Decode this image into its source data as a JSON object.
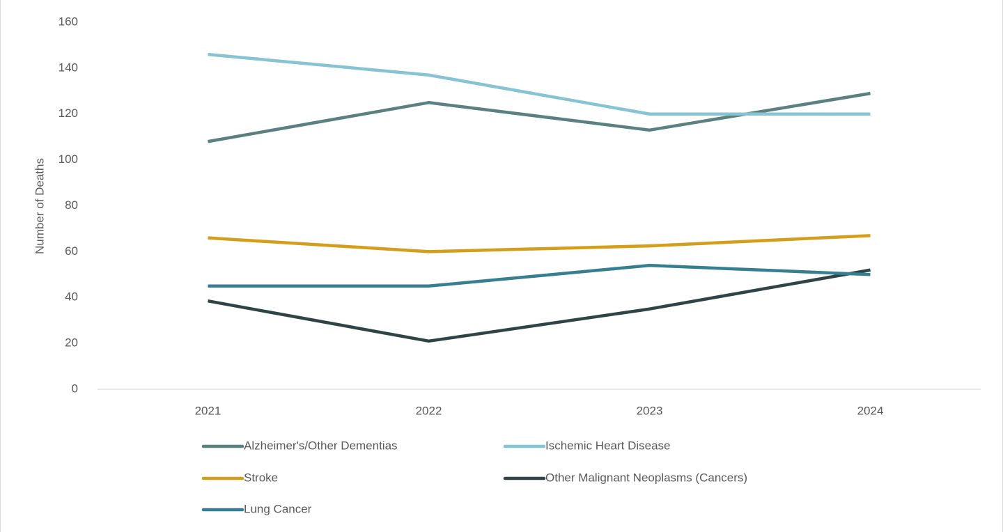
{
  "chart_data": {
    "type": "line",
    "y_label": "Number of Deaths",
    "categories": [
      "2021",
      "2022",
      "2023",
      "2024"
    ],
    "series": [
      {
        "name": "Alzheimer's/Other Dementias",
        "color": "#5a8081",
        "values": [
          108,
          125,
          113,
          129
        ]
      },
      {
        "name": "Ischemic Heart Disease",
        "color": "#86c4d3",
        "values": [
          146,
          137,
          120,
          120
        ]
      },
      {
        "name": "Stroke",
        "color": "#d49e1b",
        "values": [
          66,
          60,
          62.5,
          67
        ]
      },
      {
        "name": "Other Malignant Neoplasms (Cancers)",
        "color": "#2f4446",
        "values": [
          38.5,
          21,
          35,
          52
        ]
      },
      {
        "name": "Lung Cancer",
        "color": "#357f91",
        "values": [
          45,
          45,
          54,
          50
        ]
      }
    ],
    "ylim": [
      0,
      160
    ],
    "yticks": [
      0,
      20,
      40,
      60,
      80,
      100,
      120,
      140,
      160
    ],
    "grid": false,
    "legend": "bottom"
  }
}
